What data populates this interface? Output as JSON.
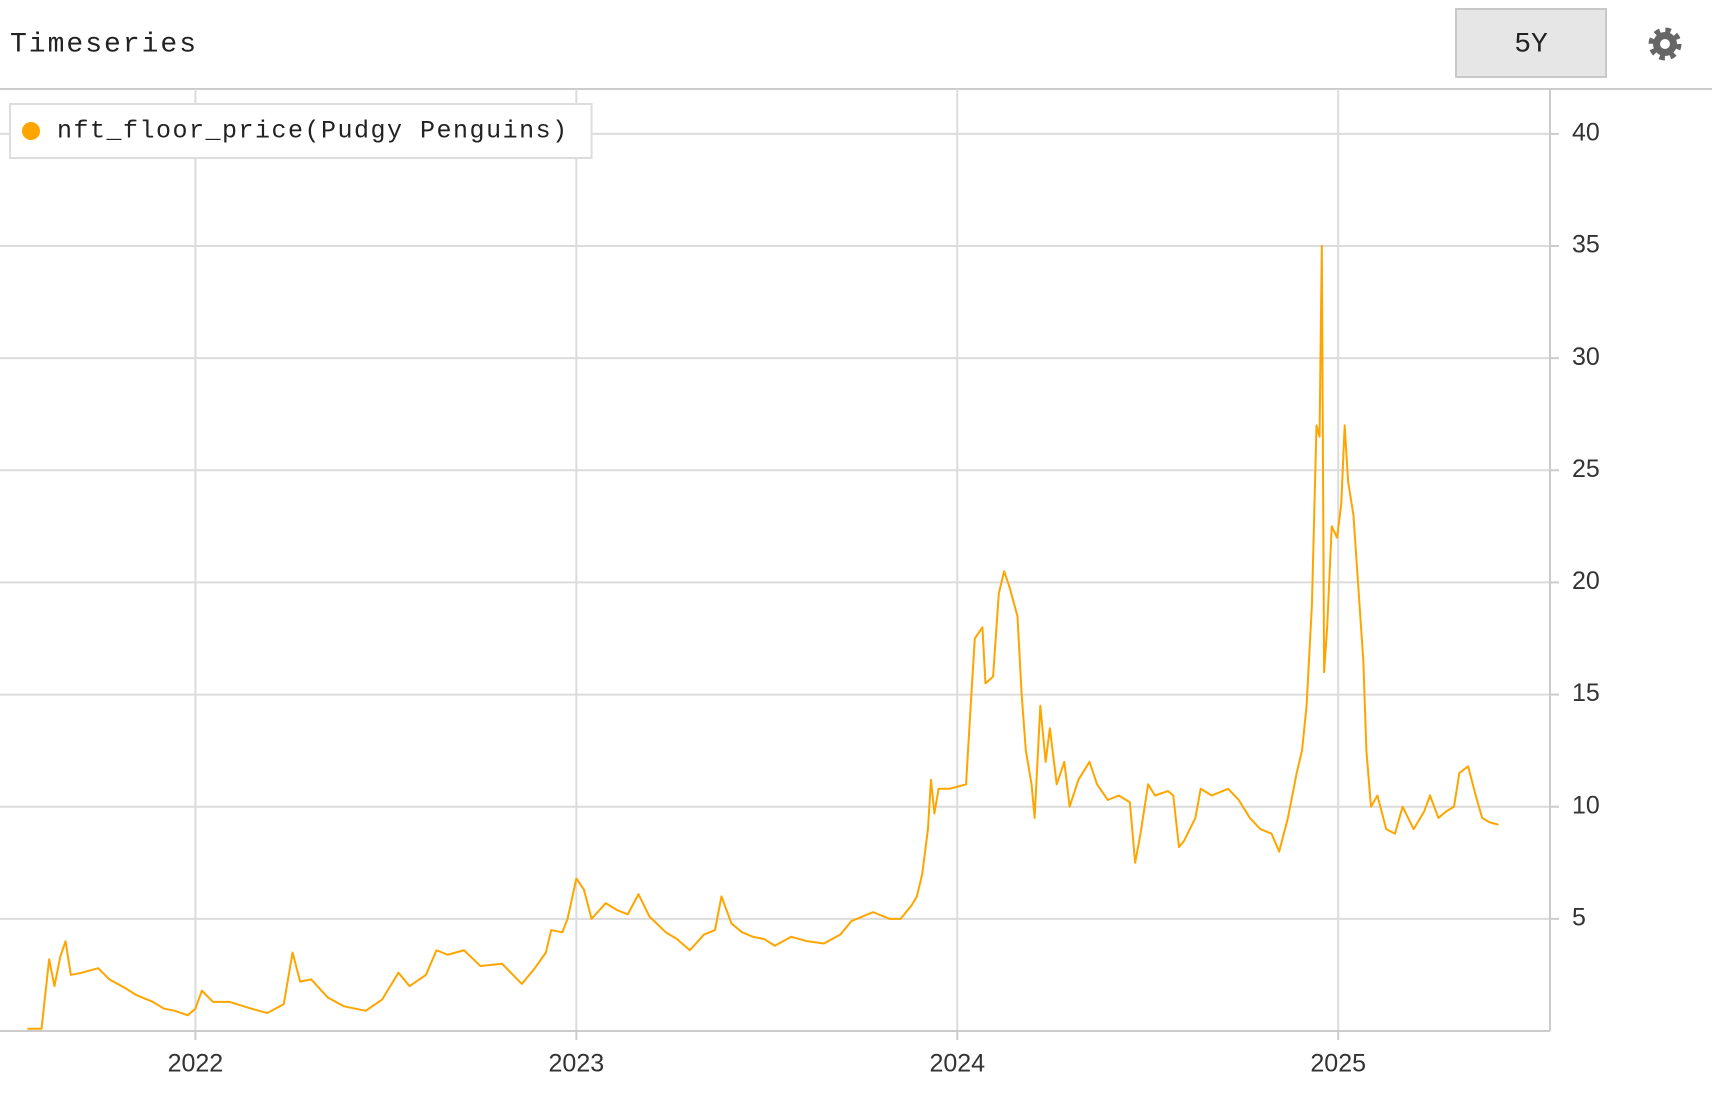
{
  "header": {
    "title": "Timeseries",
    "range_button": "5Y"
  },
  "chart_data": {
    "type": "line",
    "x": [
      2021.559,
      2021.596,
      2021.616,
      2021.63,
      2021.645,
      2021.659,
      2021.673,
      2021.702,
      2021.745,
      2021.774,
      2021.817,
      2021.845,
      2021.888,
      2021.917,
      2021.946,
      2021.98,
      2022.0,
      2022.017,
      2022.046,
      2022.089,
      2022.146,
      2022.189,
      2022.232,
      2022.255,
      2022.275,
      2022.304,
      2022.347,
      2022.39,
      2022.447,
      2022.49,
      2022.533,
      2022.562,
      2022.605,
      2022.633,
      2022.662,
      2022.705,
      2022.748,
      2022.805,
      2022.857,
      2022.891,
      2022.92,
      2022.934,
      2022.963,
      2022.977,
      2023.0,
      2023.02,
      2023.04,
      2023.077,
      2023.106,
      2023.135,
      2023.163,
      2023.192,
      2023.235,
      2023.264,
      2023.298,
      2023.335,
      2023.364,
      2023.381,
      2023.407,
      2023.435,
      2023.464,
      2023.493,
      2023.521,
      2023.564,
      2023.607,
      2023.65,
      2023.693,
      2023.722,
      2023.751,
      2023.779,
      2023.822,
      2023.851,
      2023.88,
      2023.894,
      2023.908,
      2023.923,
      2023.931,
      2023.94,
      2023.951,
      2023.98,
      2024.023,
      2024.037,
      2024.046,
      2024.066,
      2024.074,
      2024.094,
      2024.109,
      2024.123,
      2024.137,
      2024.158,
      2024.169,
      2024.18,
      2024.195,
      2024.203,
      2024.218,
      2024.232,
      2024.243,
      2024.261,
      2024.281,
      2024.295,
      2024.318,
      2024.347,
      2024.367,
      2024.395,
      2024.424,
      2024.453,
      2024.467,
      2024.481,
      2024.501,
      2024.519,
      2024.553,
      2024.567,
      2024.582,
      2024.596,
      2024.625,
      2024.639,
      2024.668,
      2024.711,
      2024.739,
      2024.768,
      2024.796,
      2024.825,
      2024.845,
      2024.868,
      2024.891,
      2024.905,
      2024.917,
      2024.931,
      2024.943,
      2024.951,
      2024.957,
      2024.963,
      2024.971,
      2024.983,
      2024.997,
      2025.008,
      2025.017,
      2025.026,
      2025.04,
      2025.054,
      2025.066,
      2025.074,
      2025.086,
      2025.103,
      2025.126,
      2025.149,
      2025.169,
      2025.198,
      2025.226,
      2025.241,
      2025.263,
      2025.284,
      2025.304,
      2025.318,
      2025.341,
      2025.361,
      2025.378,
      2025.398,
      2025.421
    ],
    "series": [
      {
        "name": "nft_floor_price(Pudgy Penguins)",
        "color": "#ffa500",
        "values": [
          0.1,
          0.1,
          3.2,
          2.0,
          3.3,
          4.0,
          2.5,
          2.6,
          2.8,
          2.3,
          1.9,
          1.6,
          1.3,
          1.0,
          0.9,
          0.7,
          1.0,
          1.8,
          1.3,
          1.3,
          1.0,
          0.8,
          1.2,
          3.5,
          2.2,
          2.3,
          1.5,
          1.1,
          0.9,
          1.4,
          2.6,
          2.0,
          2.5,
          3.6,
          3.4,
          3.6,
          2.9,
          3.0,
          2.1,
          2.8,
          3.5,
          4.5,
          4.4,
          5.0,
          6.8,
          6.3,
          5.0,
          5.7,
          5.4,
          5.2,
          6.1,
          5.1,
          4.4,
          4.1,
          3.6,
          4.3,
          4.5,
          6.0,
          4.8,
          4.4,
          4.2,
          4.1,
          3.8,
          4.2,
          4.0,
          3.9,
          4.3,
          4.9,
          5.1,
          5.3,
          5.0,
          5.0,
          5.6,
          6.0,
          7.0,
          9.0,
          11.2,
          9.7,
          10.8,
          10.8,
          11.0,
          15.0,
          17.5,
          18.0,
          15.5,
          15.8,
          19.5,
          20.5,
          19.8,
          18.5,
          15.0,
          12.5,
          11.0,
          9.5,
          14.5,
          12.0,
          13.5,
          11.0,
          12.0,
          10.0,
          11.2,
          12.0,
          11.0,
          10.3,
          10.5,
          10.2,
          7.5,
          8.8,
          11.0,
          10.5,
          10.7,
          10.5,
          8.2,
          8.5,
          9.5,
          10.8,
          10.5,
          10.8,
          10.3,
          9.5,
          9.0,
          8.8,
          8.0,
          9.5,
          11.5,
          12.5,
          14.5,
          19.0,
          27.0,
          26.5,
          35.0,
          16.0,
          18.0,
          22.5,
          22.0,
          23.5,
          27.0,
          24.5,
          23.0,
          19.5,
          16.5,
          12.5,
          10.0,
          10.5,
          9.0,
          8.8,
          10.0,
          9.0,
          9.8,
          10.5,
          9.5,
          9.8,
          10.0,
          11.5,
          11.8,
          10.5,
          9.5,
          9.3,
          9.2
        ]
      }
    ],
    "xlim": [
      2021.487,
      2025.556
    ],
    "xticks": [
      2022,
      2023,
      2024,
      2025
    ],
    "ylim": [
      0,
      42
    ],
    "yticks": [
      5,
      10,
      15,
      20,
      25,
      30,
      35,
      40
    ],
    "grid": true,
    "legend": "top-left"
  }
}
